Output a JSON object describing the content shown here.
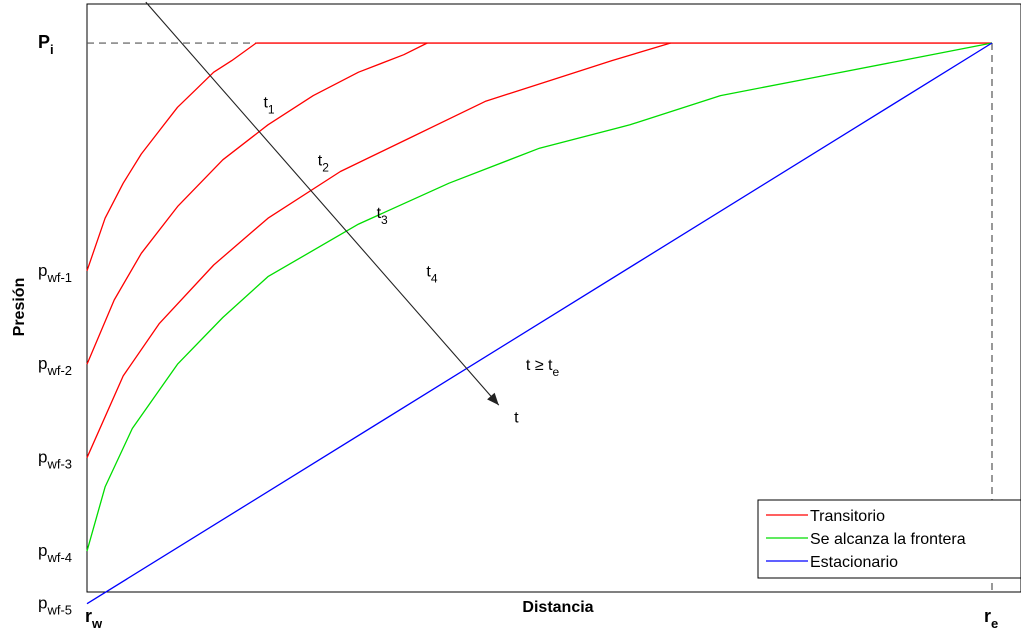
{
  "chart_data": {
    "type": "line",
    "xlabel": "Distancia",
    "ylabel": "Presión",
    "x_tick_labels": [
      {
        "main": "r",
        "sub": "w"
      },
      {
        "main": "r",
        "sub": "e"
      }
    ],
    "y_tick_labels": [
      {
        "main": "P",
        "sub": "i",
        "bold": true,
        "level": "pi"
      },
      {
        "main": "p",
        "sub": "wf-1",
        "level": "pwf1"
      },
      {
        "main": "p",
        "sub": "wf-2",
        "level": "pwf2"
      },
      {
        "main": "p",
        "sub": "wf-3",
        "level": "pwf3"
      },
      {
        "main": "p",
        "sub": "wf-4",
        "level": "pwf4"
      },
      {
        "main": "p",
        "sub": "wf-5",
        "level": "pwf5"
      }
    ],
    "xlim": [
      0,
      1
    ],
    "ylim": [
      0,
      1
    ],
    "levels": {
      "pi": 0.94,
      "pwf1": 0.55,
      "pwf2": 0.39,
      "pwf3": 0.23,
      "pwf4": 0.07,
      "pwf5": -0.02
    },
    "series": [
      {
        "name": "Transitorio",
        "color": "#ff0000",
        "curves": [
          {
            "x": [
              0,
              0.02,
              0.04,
              0.06,
              0.08,
              0.1,
              0.12,
              0.14,
              0.16,
              0.187
            ],
            "y": [
              0.55,
              0.64,
              0.7,
              0.75,
              0.79,
              0.83,
              0.86,
              0.89,
              0.91,
              0.94
            ]
          },
          {
            "x": [
              0,
              0.03,
              0.06,
              0.1,
              0.15,
              0.2,
              0.25,
              0.3,
              0.35,
              0.376
            ],
            "y": [
              0.39,
              0.5,
              0.58,
              0.66,
              0.74,
              0.8,
              0.85,
              0.89,
              0.92,
              0.94
            ]
          },
          {
            "x": [
              0,
              0.04,
              0.08,
              0.14,
              0.2,
              0.28,
              0.36,
              0.44,
              0.52,
              0.58,
              0.645
            ],
            "y": [
              0.23,
              0.37,
              0.46,
              0.56,
              0.64,
              0.72,
              0.78,
              0.84,
              0.88,
              0.91,
              0.94
            ]
          }
        ],
        "plateau": {
          "x": [
            0.187,
            1.0
          ],
          "y": 0.94
        }
      },
      {
        "name": "Se alcanza la frontera",
        "color": "#00dd00",
        "curves": [
          {
            "x": [
              0,
              0.02,
              0.05,
              0.1,
              0.15,
              0.2,
              0.3,
              0.4,
              0.5,
              0.6,
              0.7,
              0.8,
              0.9,
              1.0
            ],
            "y": [
              0.07,
              0.18,
              0.28,
              0.39,
              0.47,
              0.54,
              0.63,
              0.7,
              0.76,
              0.8,
              0.85,
              0.88,
              0.91,
              0.94
            ]
          }
        ]
      },
      {
        "name": "Estacionario",
        "color": "#0000ff",
        "curves": [
          {
            "x": [
              0,
              1.0
            ],
            "y": [
              -0.02,
              0.94
            ]
          }
        ]
      }
    ],
    "annotations": {
      "time_labels": [
        {
          "main": "t",
          "sub": "1",
          "x": 0.195,
          "y": 0.83
        },
        {
          "main": "t",
          "sub": "2",
          "x": 0.255,
          "y": 0.73
        },
        {
          "main": "t",
          "sub": "3",
          "x": 0.32,
          "y": 0.64
        },
        {
          "main": "t",
          "sub": "4",
          "x": 0.375,
          "y": 0.54
        },
        {
          "main": "t ≥ t",
          "sub": "e",
          "x": 0.485,
          "y": 0.38
        }
      ],
      "arrow": {
        "from": [
          0.065,
          1.01
        ],
        "to": [
          0.455,
          0.32
        ],
        "label": "t",
        "label_pos": [
          0.472,
          0.29
        ]
      },
      "legend_position": "bottom-right"
    },
    "grid": false
  }
}
